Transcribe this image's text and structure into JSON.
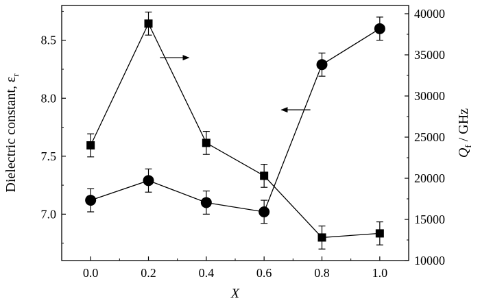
{
  "chart_data": {
    "type": "line",
    "xlabel": "X",
    "ylabel_left": "Dielectric constant, ε",
    "ylabel_left_sub": "r",
    "ylabel_right": "Q",
    "ylabel_right_sub": "f",
    "ylabel_right_unit": " / GHz",
    "xlim": [
      -0.1,
      1.1
    ],
    "ylim_left": [
      6.6,
      8.8
    ],
    "ylim_right": [
      10000,
      41000
    ],
    "x_ticks": [
      "0.0",
      "0.2",
      "0.4",
      "0.6",
      "0.8",
      "1.0"
    ],
    "y_left_ticks": [
      "7.0",
      "7.5",
      "8.0",
      "8.5"
    ],
    "y_right_ticks": [
      "10000",
      "15000",
      "20000",
      "25000",
      "30000",
      "35000",
      "40000"
    ],
    "grid": false,
    "series": [
      {
        "axis": "left",
        "marker": "circle",
        "x": [
          0.0,
          0.2,
          0.4,
          0.6,
          0.8,
          1.0
        ],
        "values": [
          7.12,
          7.29,
          7.1,
          7.02,
          8.29,
          8.6
        ],
        "error": [
          0.1,
          0.1,
          0.1,
          0.1,
          0.1,
          0.1
        ]
      },
      {
        "axis": "right",
        "marker": "square",
        "x": [
          0.0,
          0.2,
          0.4,
          0.6,
          0.8,
          1.0
        ],
        "values": [
          24000,
          38800,
          24300,
          20300,
          12800,
          13300
        ],
        "error": [
          1400,
          1400,
          1400,
          1400,
          1400,
          1400
        ]
      }
    ],
    "annotations": [
      {
        "type": "arrow",
        "direction": "right",
        "points_to": "right-axis",
        "x_data": [
          0.24,
          0.34
        ],
        "y_left": 8.35
      },
      {
        "type": "arrow",
        "direction": "left",
        "points_to": "left-axis",
        "x_data": [
          0.76,
          0.66
        ],
        "y_left": 7.9
      }
    ]
  }
}
